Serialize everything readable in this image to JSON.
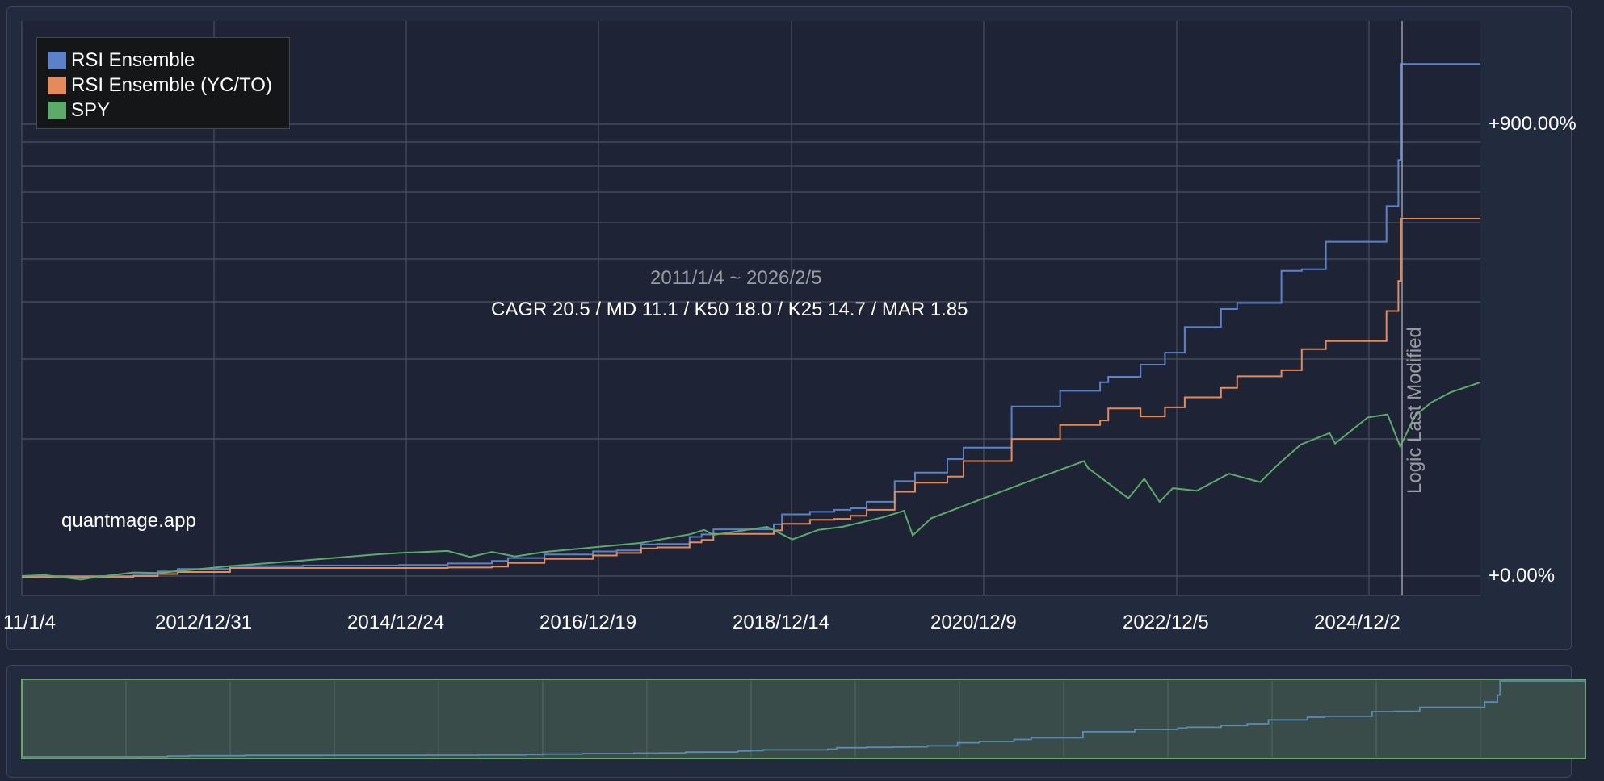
{
  "chart_data": {
    "type": "line",
    "date_range": "2011/1/4 ~ 2026/2/5",
    "stats": "CAGR 20.5 / MD 11.1 / K50 18.0 / K25 14.7 / MAR 1.85",
    "watermark": "quantmage.app",
    "annotation": "Logic Last Modified",
    "annotation_date": "2025-04-15",
    "x_tick_labels": [
      "11/1/4",
      "2012/12/31",
      "2014/12/24",
      "2016/12/19",
      "2018/12/14",
      "2020/12/9",
      "2022/12/5",
      "2024/12/2"
    ],
    "y_tick_labels": [
      "+900.00%",
      "+0.00%"
    ],
    "y_label_values": [
      900,
      0
    ],
    "y_axis": "right",
    "grid": true,
    "legend_position": "top-left",
    "x_range": [
      "2011-01-04",
      "2026-02-05"
    ],
    "y_range": [
      -8,
      1020
    ],
    "series": [
      {
        "name": "RSI Ensemble",
        "color": "#5b82c9",
        "points": [
          [
            "2011-01-04",
            0
          ],
          [
            "2011-06-01",
            0
          ],
          [
            "2011-09-01",
            0
          ],
          [
            "2012-03-01",
            1
          ],
          [
            "2012-06-01",
            9
          ],
          [
            "2012-08-15",
            14
          ],
          [
            "2013-03-01",
            20
          ],
          [
            "2013-12-01",
            21
          ],
          [
            "2014-09-01",
            21
          ],
          [
            "2014-12-01",
            22
          ],
          [
            "2015-06-01",
            25
          ],
          [
            "2015-11-15",
            30
          ],
          [
            "2016-01-15",
            36
          ],
          [
            "2016-06-01",
            43
          ],
          [
            "2016-12-01",
            49
          ],
          [
            "2017-03-01",
            51
          ],
          [
            "2017-06-01",
            63
          ],
          [
            "2017-08-01",
            64
          ],
          [
            "2017-12-01",
            78
          ],
          [
            "2018-01-15",
            83
          ],
          [
            "2018-03-01",
            93
          ],
          [
            "2018-10-15",
            103
          ],
          [
            "2018-11-15",
            123
          ],
          [
            "2019-03-01",
            128
          ],
          [
            "2019-06-01",
            132
          ],
          [
            "2019-08-01",
            135
          ],
          [
            "2019-10-01",
            148
          ],
          [
            "2020-01-15",
            189
          ],
          [
            "2020-04-01",
            206
          ],
          [
            "2020-08-01",
            233
          ],
          [
            "2020-10-01",
            256
          ],
          [
            "2021-04-01",
            338
          ],
          [
            "2021-10-01",
            369
          ],
          [
            "2022-03-01",
            386
          ],
          [
            "2022-04-01",
            397
          ],
          [
            "2022-08-01",
            421
          ],
          [
            "2022-11-01",
            445
          ],
          [
            "2023-01-15",
            496
          ],
          [
            "2023-06-01",
            532
          ],
          [
            "2023-08-01",
            544
          ],
          [
            "2024-01-15",
            608
          ],
          [
            "2024-04-01",
            611
          ],
          [
            "2024-07-01",
            666
          ],
          [
            "2025-02-15",
            737
          ],
          [
            "2025-04-01",
            829
          ],
          [
            "2025-04-10",
            1020
          ],
          [
            "2026-02-05",
            1020
          ]
        ]
      },
      {
        "name": "RSI Ensemble (YC/TO)",
        "color": "#e58a5a",
        "points": [
          [
            "2011-01-04",
            -2
          ],
          [
            "2011-06-01",
            -2
          ],
          [
            "2011-09-01",
            -2
          ],
          [
            "2012-03-01",
            0
          ],
          [
            "2012-06-01",
            4
          ],
          [
            "2012-08-15",
            8
          ],
          [
            "2013-03-01",
            16
          ],
          [
            "2013-12-01",
            16
          ],
          [
            "2014-09-01",
            16
          ],
          [
            "2014-12-01",
            16
          ],
          [
            "2015-06-01",
            17
          ],
          [
            "2015-11-15",
            19
          ],
          [
            "2016-01-15",
            26
          ],
          [
            "2016-06-01",
            34
          ],
          [
            "2016-12-01",
            41
          ],
          [
            "2017-03-01",
            46
          ],
          [
            "2017-06-01",
            55
          ],
          [
            "2017-08-01",
            57
          ],
          [
            "2017-12-01",
            67
          ],
          [
            "2018-01-15",
            72
          ],
          [
            "2018-03-01",
            84
          ],
          [
            "2018-10-15",
            91
          ],
          [
            "2018-11-15",
            104
          ],
          [
            "2019-03-01",
            112
          ],
          [
            "2019-06-01",
            114
          ],
          [
            "2019-08-01",
            120
          ],
          [
            "2019-10-01",
            132
          ],
          [
            "2020-01-15",
            168
          ],
          [
            "2020-04-01",
            186
          ],
          [
            "2020-08-01",
            198
          ],
          [
            "2020-10-01",
            229
          ],
          [
            "2021-04-01",
            273
          ],
          [
            "2021-10-01",
            301
          ],
          [
            "2022-03-01",
            310
          ],
          [
            "2022-04-01",
            334
          ],
          [
            "2022-08-01",
            318
          ],
          [
            "2022-11-01",
            336
          ],
          [
            "2023-01-15",
            356
          ],
          [
            "2023-06-01",
            375
          ],
          [
            "2023-08-01",
            398
          ],
          [
            "2024-01-15",
            410
          ],
          [
            "2024-04-01",
            452
          ],
          [
            "2024-07-01",
            468
          ],
          [
            "2025-02-15",
            528
          ],
          [
            "2025-04-01",
            588
          ],
          [
            "2025-04-10",
            712
          ],
          [
            "2026-02-05",
            712
          ]
        ]
      },
      {
        "name": "SPY",
        "color": "#5cab6a",
        "points": [
          [
            "2011-01-04",
            0
          ],
          [
            "2011-04-01",
            2
          ],
          [
            "2011-08-15",
            -7
          ],
          [
            "2011-10-01",
            -3
          ],
          [
            "2012-03-01",
            7
          ],
          [
            "2012-06-01",
            6
          ],
          [
            "2012-10-01",
            12
          ],
          [
            "2013-03-01",
            20
          ],
          [
            "2013-12-01",
            31
          ],
          [
            "2014-09-01",
            43
          ],
          [
            "2014-12-01",
            46
          ],
          [
            "2015-06-01",
            50
          ],
          [
            "2015-08-25",
            38
          ],
          [
            "2015-11-15",
            48
          ],
          [
            "2016-02-10",
            39
          ],
          [
            "2016-06-01",
            48
          ],
          [
            "2016-12-01",
            57
          ],
          [
            "2017-06-01",
            66
          ],
          [
            "2017-12-01",
            83
          ],
          [
            "2018-01-25",
            92
          ],
          [
            "2018-03-01",
            82
          ],
          [
            "2018-09-20",
            98
          ],
          [
            "2018-12-24",
            73
          ],
          [
            "2019-04-01",
            92
          ],
          [
            "2019-07-01",
            98
          ],
          [
            "2019-12-01",
            117
          ],
          [
            "2020-02-19",
            130
          ],
          [
            "2020-03-23",
            81
          ],
          [
            "2020-06-01",
            115
          ],
          [
            "2020-12-01",
            152
          ],
          [
            "2021-06-01",
            188
          ],
          [
            "2021-12-30",
            229
          ],
          [
            "2022-01-15",
            215
          ],
          [
            "2022-06-16",
            155
          ],
          [
            "2022-08-15",
            194
          ],
          [
            "2022-10-12",
            148
          ],
          [
            "2022-12-01",
            175
          ],
          [
            "2023-03-01",
            170
          ],
          [
            "2023-07-01",
            204
          ],
          [
            "2023-10-27",
            187
          ],
          [
            "2023-12-29",
            220
          ],
          [
            "2024-03-28",
            262
          ],
          [
            "2024-07-15",
            285
          ],
          [
            "2024-08-05",
            264
          ],
          [
            "2024-12-06",
            316
          ],
          [
            "2025-02-19",
            322
          ],
          [
            "2025-04-08",
            258
          ],
          [
            "2025-06-01",
            318
          ],
          [
            "2025-08-01",
            345
          ],
          [
            "2025-10-15",
            366
          ],
          [
            "2026-02-05",
            386
          ]
        ]
      }
    ],
    "navigator": {
      "series": "RSI Ensemble"
    }
  },
  "colors": {
    "background": "#1f2638",
    "plot_background": "#1e2436",
    "grid": "#4a5060",
    "navigator_fill": "#3a4c4a",
    "navigator_border": "#6aa66a",
    "navigator_line": "#5d8bb0"
  }
}
